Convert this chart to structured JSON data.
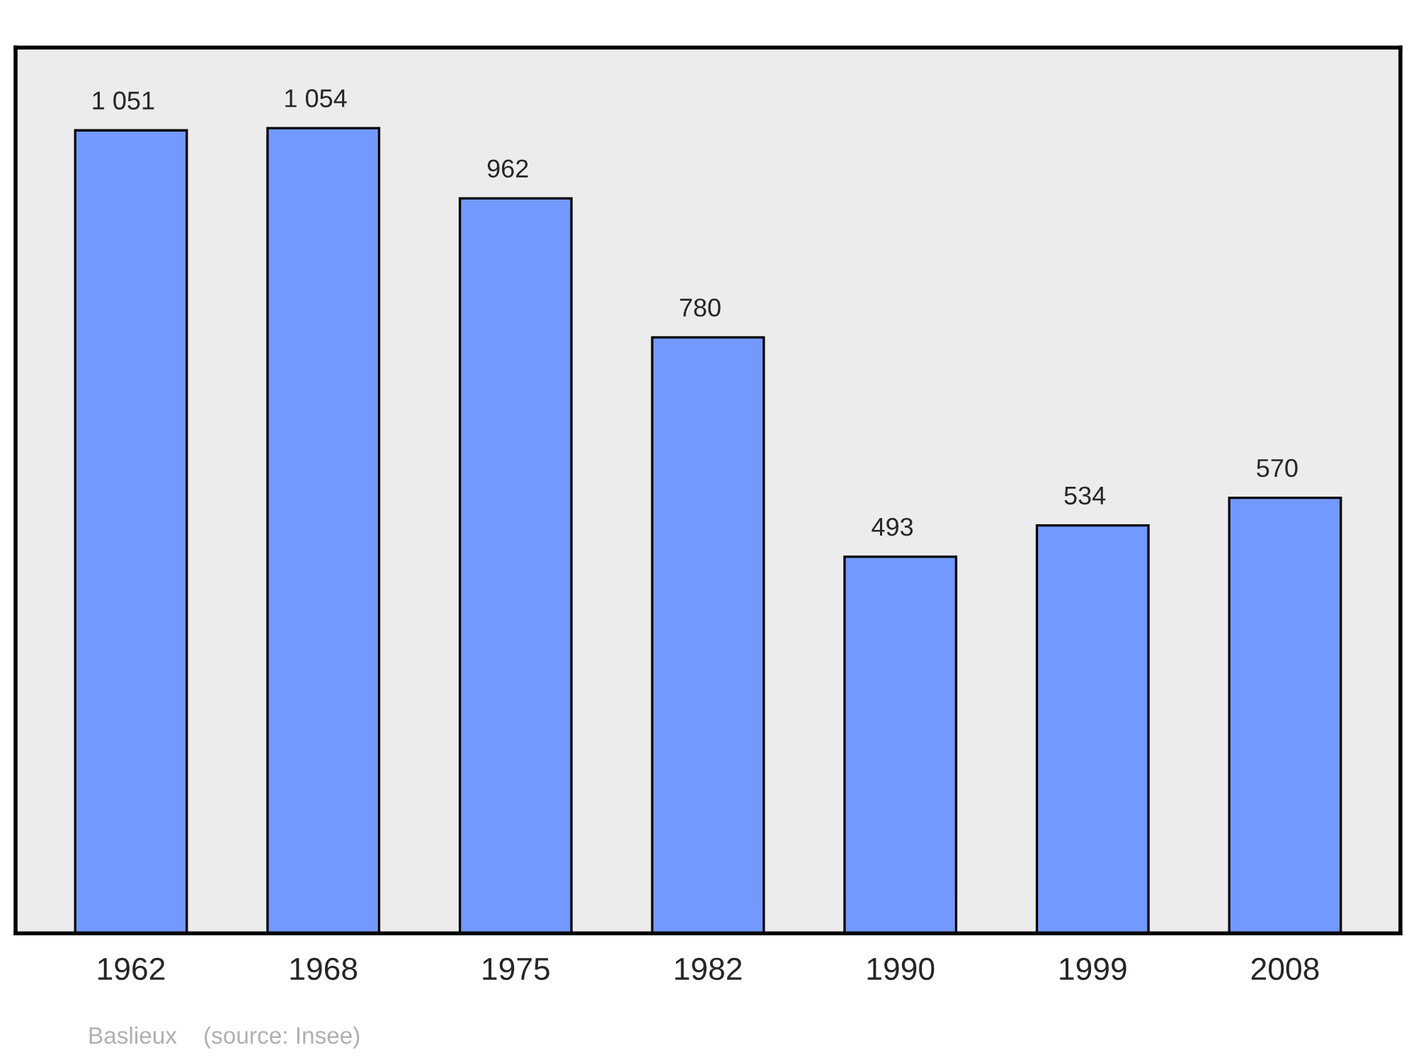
{
  "chart_data": {
    "type": "bar",
    "categories": [
      "1962",
      "1968",
      "1975",
      "1982",
      "1990",
      "1999",
      "2008"
    ],
    "values": [
      1051,
      1054,
      962,
      780,
      493,
      534,
      570
    ],
    "value_labels": [
      "1 051",
      "1 054",
      "962",
      "780",
      "493",
      "534",
      "570"
    ],
    "color": "#7399ff",
    "tick_labels": "x",
    "annotations": [
      "Baslieux    (source: Insee)"
    ]
  }
}
